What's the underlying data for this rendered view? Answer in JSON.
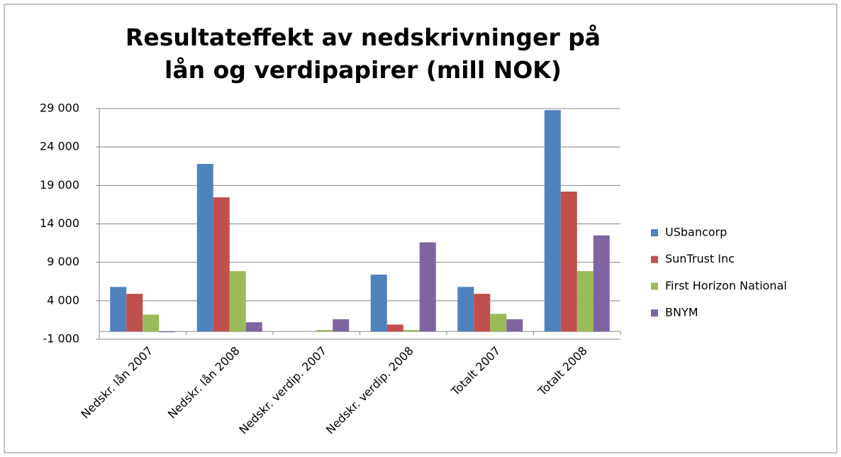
{
  "chart_data": {
    "type": "bar",
    "title": "Resultateffekt av nedskrivninger på lån og verdipapirer (mill NOK)",
    "categories": [
      "Nedskr. lån 2007",
      "Nedskr. lån 2008",
      "Nedskr. verdip. 2007",
      "Nedskr. verdip. 2008",
      "Totalt 2007",
      "Totalt 2008"
    ],
    "series": [
      {
        "name": "USbancorp",
        "color": "#4F81BD",
        "values": [
          5800,
          21800,
          0,
          7400,
          5800,
          28800
        ]
      },
      {
        "name": "SunTrust Inc",
        "color": "#C0504D",
        "values": [
          4900,
          17450,
          0,
          900,
          4900,
          18200
        ]
      },
      {
        "name": "First Horizon National",
        "color": "#9BBB59",
        "values": [
          2200,
          7850,
          200,
          200,
          2300,
          7850
        ]
      },
      {
        "name": "BNYM",
        "color": "#8064A2",
        "values": [
          -100,
          1200,
          1600,
          11600,
          1600,
          12500
        ]
      }
    ],
    "ylim": [
      -1000,
      29000
    ],
    "yticks": [
      {
        "value": -1000,
        "label": "-1 000"
      },
      {
        "value": 4000,
        "label": "4 000"
      },
      {
        "value": 9000,
        "label": "9 000"
      },
      {
        "value": 14000,
        "label": "14 000"
      },
      {
        "value": 19000,
        "label": "19 000"
      },
      {
        "value": 24000,
        "label": "24 000"
      },
      {
        "value": 29000,
        "label": "29 000"
      }
    ],
    "grid": true,
    "legend": "right"
  }
}
